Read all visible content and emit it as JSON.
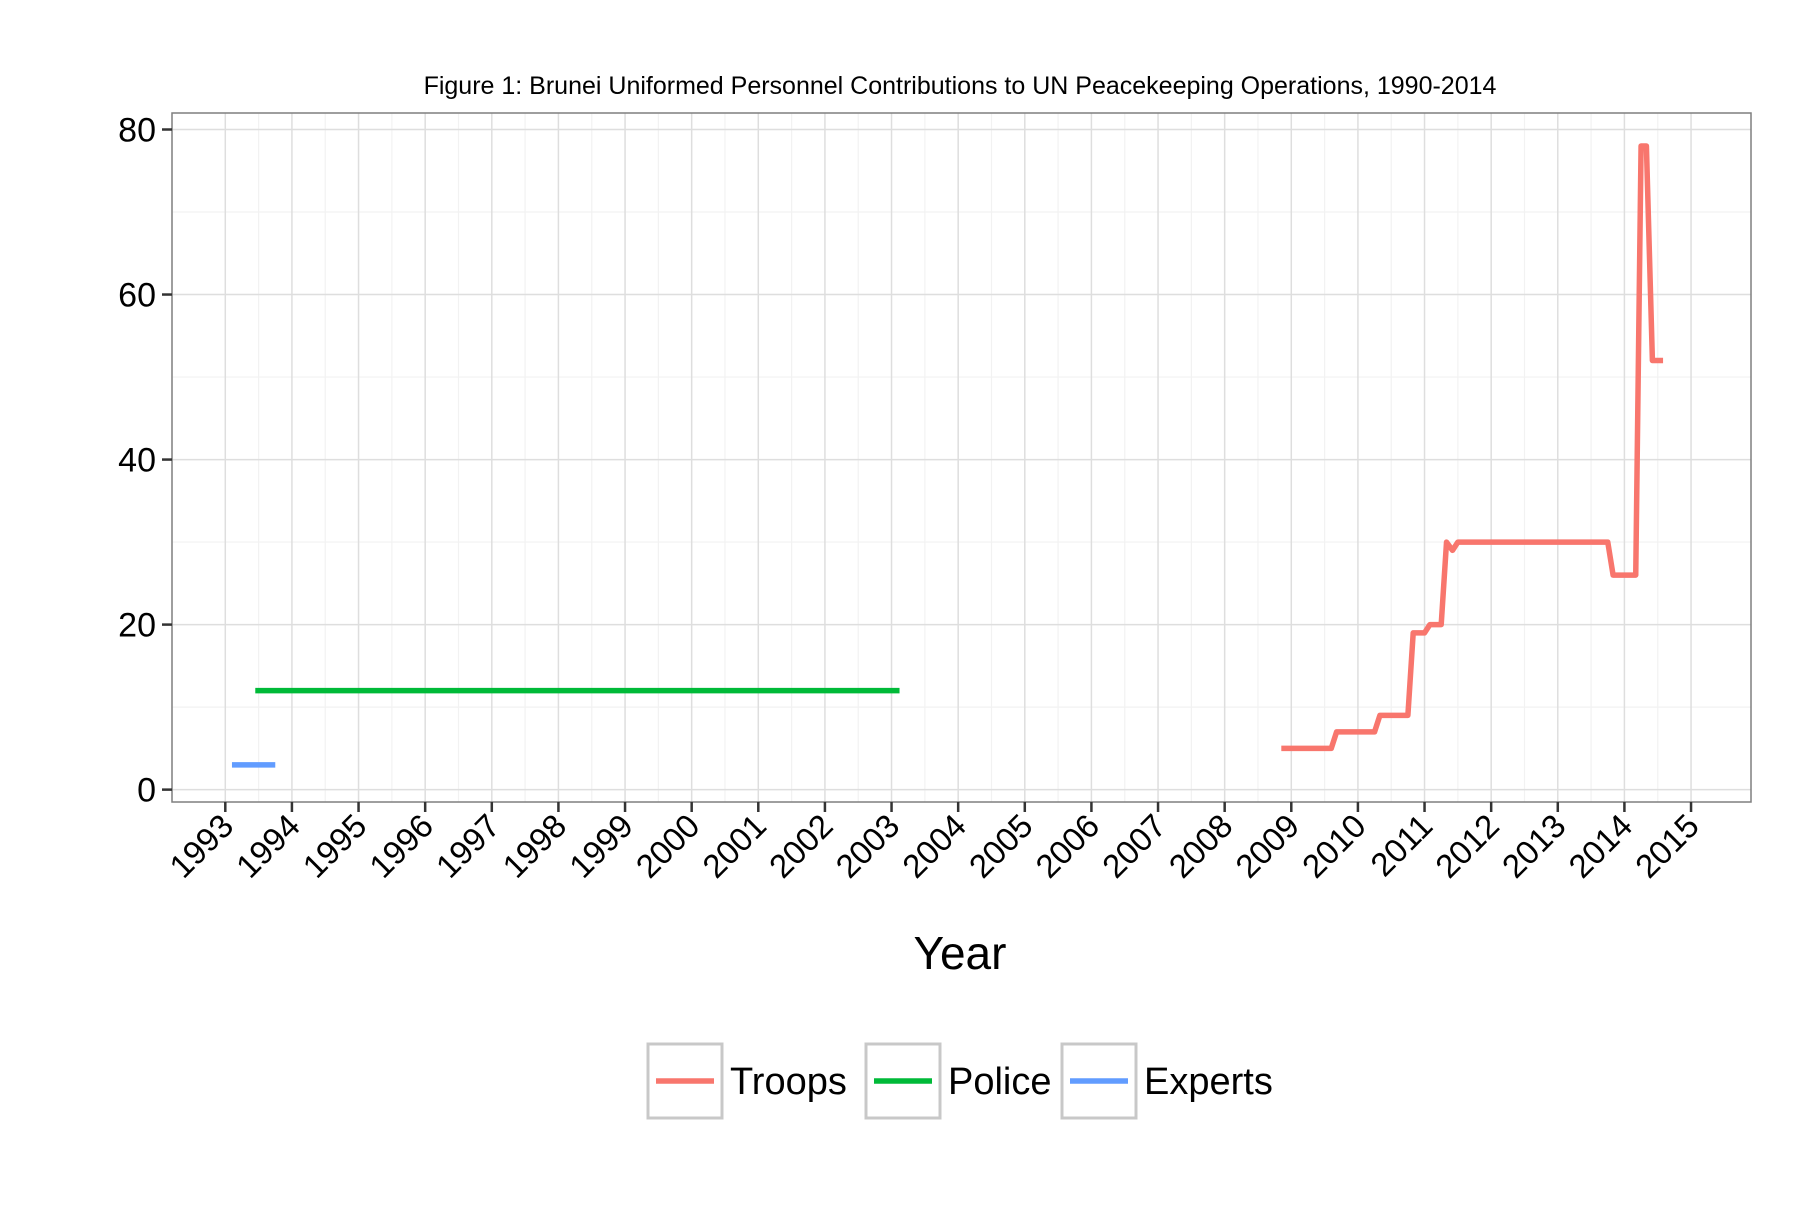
{
  "chart_data": {
    "type": "line",
    "title": "Figure 1: Brunei Uniformed Personnel Contributions to UN Peacekeeping Operations, 1990-2014",
    "xlabel": "Year",
    "ylabel": "",
    "xlim": [
      1992.2,
      2015.9
    ],
    "ylim": [
      -1.5,
      82
    ],
    "x_ticks": [
      1993,
      1994,
      1995,
      1996,
      1997,
      1998,
      1999,
      2000,
      2001,
      2002,
      2003,
      2004,
      2005,
      2006,
      2007,
      2008,
      2009,
      2010,
      2011,
      2012,
      2013,
      2014,
      2015
    ],
    "y_ticks": [
      0,
      20,
      40,
      60,
      80
    ],
    "grid": true,
    "legend_position": "bottom",
    "series": [
      {
        "name": "Troops",
        "color": "#F8766D",
        "points": [
          [
            2008.85,
            5
          ],
          [
            2009.6,
            5
          ],
          [
            2009.68,
            7
          ],
          [
            2010.25,
            7
          ],
          [
            2010.33,
            9
          ],
          [
            2010.75,
            9
          ],
          [
            2010.83,
            19
          ],
          [
            2011.0,
            19
          ],
          [
            2011.08,
            20
          ],
          [
            2011.25,
            20
          ],
          [
            2011.33,
            30
          ],
          [
            2011.42,
            29
          ],
          [
            2011.5,
            30
          ],
          [
            2013.75,
            30
          ],
          [
            2013.83,
            26
          ],
          [
            2014.17,
            26
          ],
          [
            2014.25,
            78
          ],
          [
            2014.33,
            78
          ],
          [
            2014.42,
            52
          ],
          [
            2014.58,
            52
          ]
        ]
      },
      {
        "name": "Police",
        "color": "#00BA38",
        "points": [
          [
            2003.12,
            12
          ],
          [
            1993.45,
            12
          ]
        ]
      },
      {
        "name": "Experts",
        "color": "#619CFF",
        "points": [
          [
            1993.1,
            3
          ],
          [
            1993.75,
            3
          ]
        ]
      }
    ]
  }
}
